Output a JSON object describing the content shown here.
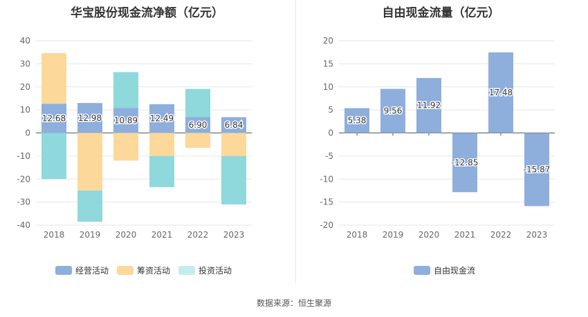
{
  "page": {
    "source_text": "数据来源：恒生聚源"
  },
  "chart_data": [
    {
      "type": "bar",
      "stacked": true,
      "title": "华宝股份现金流净额（亿元）",
      "categories": [
        "2018",
        "2019",
        "2020",
        "2021",
        "2022",
        "2023"
      ],
      "ylim": [
        -40,
        40
      ],
      "yticks": [
        40,
        30,
        20,
        10,
        0,
        -10,
        -20,
        -30,
        -40
      ],
      "grid": true,
      "legend_position": "bottom",
      "series": [
        {
          "name": "经营活动",
          "color": "#8eaedc",
          "values": [
            12.68,
            12.98,
            10.89,
            12.49,
            6.9,
            6.84
          ],
          "labels": [
            "12.68",
            "12.98",
            "10.89",
            "12.49",
            "6.90",
            "6.84"
          ]
        },
        {
          "name": "筹资活动",
          "color": "#fdd89b",
          "values": [
            22,
            -25,
            -12,
            -10,
            -6.5,
            -10
          ]
        },
        {
          "name": "投资活动",
          "color": "#8fd8dc",
          "legend_color": "#c5eced",
          "values": [
            -20,
            -13.5,
            15.5,
            -13.5,
            12.2,
            -21
          ]
        }
      ]
    },
    {
      "type": "bar",
      "title": "自由现金流量（亿元）",
      "categories": [
        "2018",
        "2019",
        "2020",
        "2021",
        "2022",
        "2023"
      ],
      "ylim": [
        -20,
        20
      ],
      "yticks": [
        20,
        15,
        10,
        5,
        0,
        -5,
        -10,
        -15,
        -20
      ],
      "grid": true,
      "legend_position": "bottom",
      "series": [
        {
          "name": "自由现金流",
          "color": "#8eaedc",
          "values": [
            5.38,
            9.56,
            11.92,
            -12.85,
            17.48,
            -15.87
          ],
          "labels": [
            "5.38",
            "9.56",
            "11.92",
            "-12.85",
            "17.48",
            "-15.87"
          ]
        }
      ]
    }
  ]
}
